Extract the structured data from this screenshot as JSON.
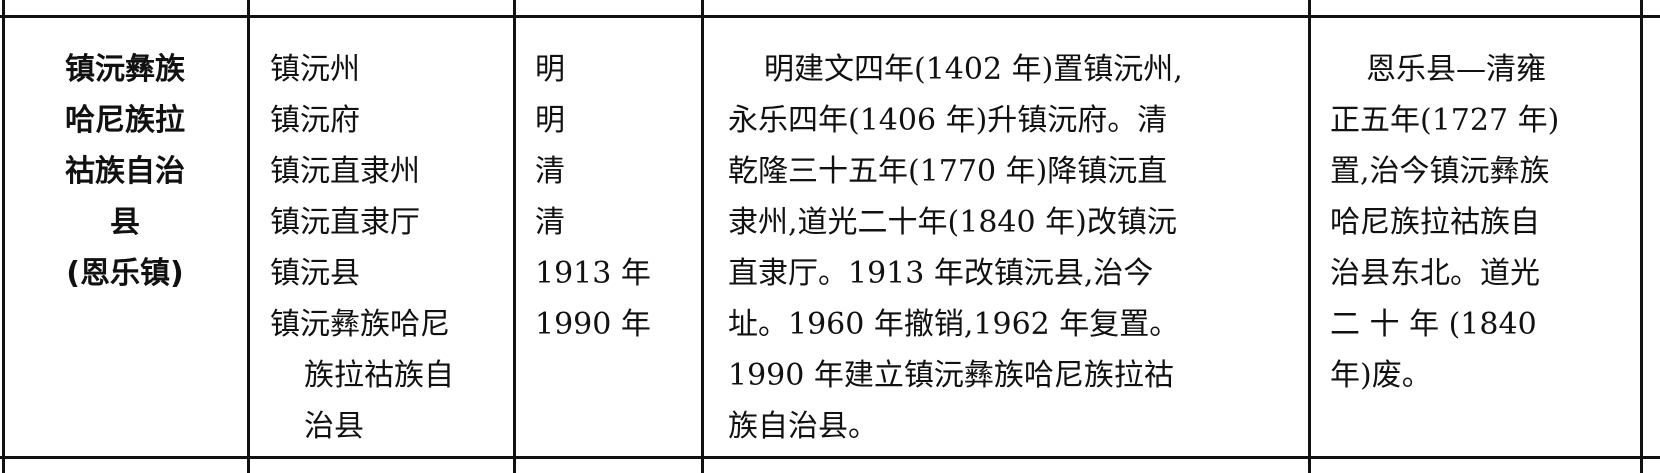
{
  "table": {
    "rows": [
      {
        "cells": [
          {
            "lines": [
              "镇沅彝族",
              "哈尼族拉",
              "祜族自治",
              "县",
              "(恩乐镇)"
            ]
          },
          {
            "items": [
              "镇沅州",
              "镇沅府",
              "镇沅直隶州",
              "镇沅直隶厅",
              "镇沅县",
              [
                "镇沅彝族哈尼",
                "族拉祜族自",
                "治县"
              ]
            ]
          },
          {
            "lines": [
              "明",
              "明",
              "清",
              "清",
              "1913 年",
              "1990 年"
            ]
          },
          {
            "lines": [
              "明建文四年(1402 年)置镇沅州,",
              "永乐四年(1406 年)升镇沅府。清",
              "乾隆三十五年(1770 年)降镇沅直",
              "隶州,道光二十年(1840 年)改镇沅",
              "直隶厅。1913 年改镇沅县,治今",
              "址。1960 年撤销,1962 年复置。",
              "1990 年建立镇沅彝族哈尼族拉祜",
              "族自治县。"
            ]
          },
          {
            "lines": [
              "恩乐县—清雍",
              "正五年(1727 年)",
              "置,治今镇沅彝族",
              "哈尼族拉祜族自",
              "治县东北。道光",
              "二 十 年 (1840",
              "年)废。"
            ]
          }
        ]
      }
    ]
  }
}
